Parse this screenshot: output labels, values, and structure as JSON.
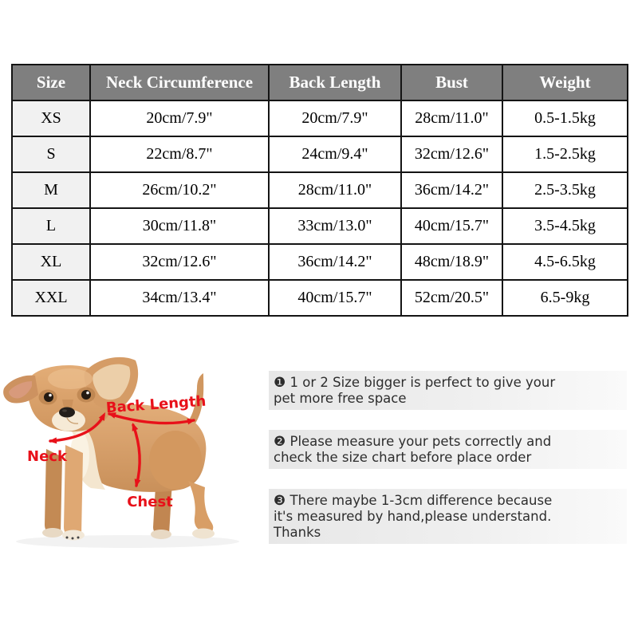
{
  "table": {
    "headers": [
      "Size",
      "Neck Circumference",
      "Back Length",
      "Bust",
      "Weight"
    ],
    "rows": [
      [
        "XS",
        "20cm/7.9\"",
        "20cm/7.9\"",
        "28cm/11.0\"",
        "0.5-1.5kg"
      ],
      [
        "S",
        "22cm/8.7\"",
        "24cm/9.4\"",
        "32cm/12.6\"",
        "1.5-2.5kg"
      ],
      [
        "M",
        "26cm/10.2\"",
        "28cm/11.0\"",
        "36cm/14.2\"",
        "2.5-3.5kg"
      ],
      [
        "L",
        "30cm/11.8\"",
        "33cm/13.0\"",
        "40cm/15.7\"",
        "3.5-4.5kg"
      ],
      [
        "XL",
        "32cm/12.6\"",
        "36cm/14.2\"",
        "48cm/18.9\"",
        "4.5-6.5kg"
      ],
      [
        "XXL",
        "34cm/13.4\"",
        "40cm/15.7\"",
        "52cm/20.5\"",
        "6.5-9kg"
      ]
    ]
  },
  "diagram": {
    "labels": {
      "back_length": "Back Length",
      "neck": "Neck",
      "chest": "Chest"
    }
  },
  "notes": [
    {
      "bullet": "❶",
      "lines": [
        "1 or 2 Size bigger is perfect to give your",
        "pet more free space"
      ]
    },
    {
      "bullet": "❷",
      "lines": [
        "Please measure your pets correctly and",
        "check the size chart before place order"
      ]
    },
    {
      "bullet": "❸",
      "lines": [
        "There maybe 1-3cm difference because",
        "it's measured by hand,please understand.",
        "Thanks"
      ]
    }
  ],
  "colors": {
    "header_bg": "#7f7f7f",
    "header_text": "#ffffff",
    "size_column_bg": "#f1f1f1",
    "table_border": "#141414",
    "note_bg_left": "#e7e7e7",
    "note_bg_right": "#fafafa",
    "note_text": "#2d2d2d",
    "annotation_red": "#e8111a"
  }
}
